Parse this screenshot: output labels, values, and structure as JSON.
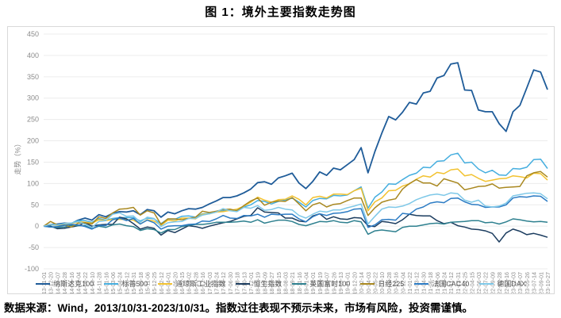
{
  "title": "图 1：境外主要指数走势图",
  "caption": "数据来源：Wind，2013/10/31-2023/10/31。指数过往表现不预示未来，市场有风险，投资需谨慎。",
  "chart_data": {
    "type": "line",
    "title": "图 1：境外主要指数走势图",
    "xlabel": "",
    "ylabel": "走势（%）",
    "ylim": [
      -100,
      450
    ],
    "ytick_step": 50,
    "grid": "horizontal-only",
    "legend_position": "bottom",
    "axis_text_color": "#8c8c8c",
    "gridline_color": "#ececec",
    "categories": [
      "2013-11-01",
      "2013-12-20",
      "2014-02-07",
      "2014-03-28",
      "2014-05-16",
      "2014-07-04",
      "2014-08-22",
      "2014-10-10",
      "2014-11-28",
      "2015-01-16",
      "2015-03-06",
      "2015-04-24",
      "2015-06-12",
      "2015-07-31",
      "2015-09-18",
      "2015-11-06",
      "2015-12-25",
      "2016-02-12",
      "2016-04-01",
      "2016-05-20",
      "2016-07-15",
      "2016-09-02",
      "2016-10-28",
      "2016-12-16",
      "2017-02-03",
      "2017-03-24",
      "2017-05-12",
      "2017-06-30",
      "2017-08-18",
      "2017-10-13",
      "2017-12-01",
      "2018-01-19",
      "2018-03-09",
      "2018-04-27",
      "2018-06-15",
      "2018-08-03",
      "2018-09-21",
      "2018-11-16",
      "2019-01-04",
      "2019-03-01",
      "2019-04-19",
      "2019-06-07",
      "2019-07-26",
      "2019-09-13",
      "2019-11-01",
      "2019-12-20",
      "2020-02-14",
      "2020-04-03",
      "2020-05-22",
      "2020-07-10",
      "2020-08-28",
      "2020-10-16",
      "2020-12-04",
      "2021-01-22",
      "2021-03-12",
      "2021-04-30",
      "2021-06-18",
      "2021-08-06",
      "2021-09-24",
      "2021-11-12",
      "2021-12-31",
      "2022-02-25",
      "2022-04-15",
      "2022-06-03",
      "2022-07-22",
      "2022-09-09",
      "2022-10-28",
      "2022-12-16",
      "2023-02-03",
      "2023-04-07",
      "2023-05-26",
      "2023-07-14",
      "2023-09-01",
      "2023-10-27"
    ],
    "series": [
      {
        "name": "纳斯达克100",
        "color": "#1F5C99",
        "values": [
          0,
          4,
          5,
          7,
          6,
          14,
          19,
          14,
          27,
          22,
          30,
          34,
          33,
          36,
          27,
          39,
          36,
          21,
          33,
          29,
          36,
          41,
          40,
          44,
          52,
          59,
          67,
          67,
          71,
          78,
          87,
          102,
          104,
          98,
          113,
          118,
          124,
          101,
          88,
          105,
          127,
          119,
          136,
          132,
          144,
          156,
          184,
          125,
          175,
          218,
          257,
          249,
          267,
          290,
          286,
          312,
          316,
          347,
          353,
          380,
          383,
          319,
          318,
          272,
          268,
          268,
          240,
          222,
          268,
          283,
          324,
          366,
          361,
          320
        ]
      },
      {
        "name": "标普500",
        "color": "#45AEDF",
        "values": [
          0,
          3,
          2,
          6,
          7,
          13,
          13,
          9,
          18,
          14,
          18,
          20,
          20,
          20,
          12,
          19,
          17,
          6,
          17,
          16,
          23,
          24,
          21,
          29,
          30,
          33,
          36,
          38,
          38,
          45,
          50,
          60,
          58,
          52,
          58,
          61,
          66,
          56,
          45,
          60,
          65,
          64,
          72,
          71,
          73,
          83,
          92,
          42,
          68,
          80,
          99,
          98,
          109,
          119,
          124,
          138,
          137,
          152,
          153,
          167,
          171,
          148,
          150,
          134,
          125,
          131,
          120,
          119,
          135,
          134,
          138,
          156,
          157,
          135
        ]
      },
      {
        "name": "道琼斯工业指数",
        "color": "#F2C230",
        "values": [
          0,
          4,
          2,
          5,
          6,
          10,
          9,
          7,
          15,
          13,
          16,
          16,
          16,
          14,
          5,
          15,
          12,
          2,
          14,
          12,
          19,
          19,
          17,
          28,
          29,
          33,
          34,
          37,
          40,
          47,
          56,
          68,
          61,
          56,
          62,
          63,
          71,
          63,
          50,
          67,
          70,
          66,
          75,
          75,
          74,
          83,
          89,
          36,
          57,
          66,
          83,
          84,
          94,
          99,
          110,
          118,
          115,
          126,
          123,
          132,
          134,
          118,
          121,
          112,
          105,
          108,
          111,
          112,
          118,
          116,
          113,
          124,
          123,
          108
        ]
      },
      {
        "name": "恒生指数",
        "color": "#1B3C5F",
        "values": [
          0,
          0,
          -6,
          -5,
          -2,
          1,
          8,
          0,
          3,
          4,
          4,
          21,
          17,
          6,
          -7,
          -2,
          -5,
          -21,
          -10,
          -15,
          -7,
          1,
          -1,
          -5,
          0,
          4,
          8,
          11,
          17,
          23,
          25,
          43,
          33,
          32,
          31,
          19,
          19,
          12,
          10,
          24,
          29,
          16,
          22,
          17,
          16,
          20,
          19,
          1,
          -1,
          11,
          9,
          6,
          15,
          28,
          25,
          24,
          24,
          13,
          6,
          9,
          1,
          -2,
          -7,
          -8,
          -11,
          -17,
          -37,
          -16,
          -7,
          -12,
          -20,
          -17,
          -21,
          -26
        ]
      },
      {
        "name": "英国富时100",
        "color": "#2E808F",
        "values": [
          0,
          -2,
          -3,
          -2,
          2,
          1,
          1,
          -6,
          0,
          -3,
          3,
          5,
          1,
          -1,
          -10,
          -6,
          -8,
          -16,
          -8,
          -8,
          -1,
          2,
          4,
          4,
          6,
          9,
          9,
          9,
          10,
          12,
          9,
          15,
          7,
          11,
          14,
          14,
          11,
          4,
          1,
          6,
          11,
          10,
          13,
          9,
          8,
          13,
          10,
          -19,
          -11,
          -9,
          -11,
          -13,
          -3,
          0,
          0,
          3,
          6,
          7,
          5,
          9,
          10,
          11,
          13,
          13,
          8,
          9,
          5,
          10,
          17,
          15,
          12,
          10,
          11,
          9
        ]
      },
      {
        "name": "日经225",
        "color": "#A98820",
        "values": [
          0,
          11,
          3,
          3,
          -2,
          7,
          8,
          5,
          22,
          18,
          31,
          40,
          41,
          44,
          26,
          36,
          31,
          4,
          17,
          17,
          15,
          18,
          21,
          35,
          32,
          35,
          39,
          40,
          36,
          48,
          59,
          66,
          49,
          56,
          59,
          58,
          67,
          52,
          36,
          50,
          55,
          45,
          51,
          53,
          60,
          66,
          66,
          25,
          43,
          56,
          61,
          64,
          87,
          100,
          109,
          101,
          101,
          94,
          111,
          106,
          101,
          85,
          89,
          93,
          94,
          99,
          89,
          91,
          92,
          93,
          118,
          125,
          128,
          115
        ]
      },
      {
        "name": "法国CAC40",
        "color": "#2B7BC4",
        "values": [
          0,
          -2,
          -1,
          2,
          4,
          3,
          -1,
          -7,
          2,
          1,
          15,
          19,
          13,
          18,
          5,
          14,
          8,
          -7,
          0,
          1,
          1,
          4,
          5,
          12,
          11,
          17,
          25,
          19,
          18,
          25,
          24,
          28,
          21,
          28,
          27,
          28,
          28,
          17,
          10,
          22,
          29,
          25,
          30,
          31,
          34,
          40,
          41,
          -3,
          3,
          15,
          16,
          14,
          30,
          28,
          40,
          45,
          54,
          57,
          55,
          65,
          66,
          57,
          51,
          50,
          44,
          45,
          45,
          50,
          66,
          69,
          68,
          71,
          70,
          58
        ]
      },
      {
        "name": "德国DAX",
        "color": "#7EC8E8",
        "values": [
          0,
          4,
          3,
          6,
          7,
          11,
          4,
          -3,
          11,
          13,
          28,
          31,
          23,
          24,
          9,
          21,
          18,
          -1,
          8,
          10,
          11,
          18,
          18,
          26,
          29,
          33,
          41,
          36,
          34,
          44,
          42,
          48,
          37,
          39,
          44,
          40,
          38,
          25,
          19,
          28,
          35,
          33,
          38,
          38,
          43,
          47,
          52,
          5,
          23,
          40,
          45,
          44,
          47,
          53,
          62,
          68,
          73,
          75,
          72,
          78,
          76,
          61,
          56,
          61,
          47,
          45,
          47,
          54,
          71,
          74,
          77,
          78,
          76,
          64
        ]
      }
    ]
  }
}
